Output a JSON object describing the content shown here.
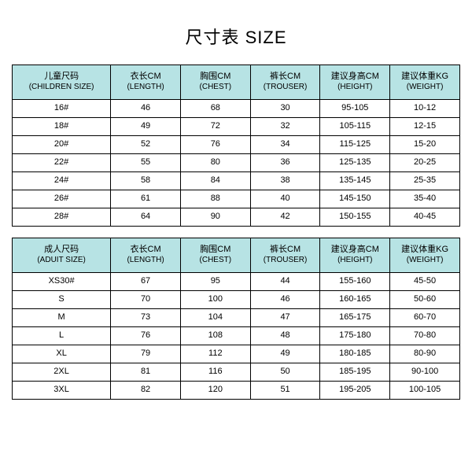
{
  "title": "尺寸表 SIZE",
  "title_fontsize": 22,
  "header_bg": "#b7e3e4",
  "border_color": "#000000",
  "bg_color": "#ffffff",
  "text_color": "#000000",
  "children": {
    "columns": [
      {
        "cn": "儿童尺码",
        "en": "(CHILDREN SIZE)"
      },
      {
        "cn": "衣长CM",
        "en": "(LENGTH)"
      },
      {
        "cn": "胸围CM",
        "en": "(CHEST)"
      },
      {
        "cn": "裤长CM",
        "en": "(TROUSER)"
      },
      {
        "cn": "建议身高CM",
        "en": "(HEIGHT)"
      },
      {
        "cn": "建议体重KG",
        "en": "(WEIGHT)"
      }
    ],
    "rows": [
      [
        "16#",
        "46",
        "68",
        "30",
        "95-105",
        "10-12"
      ],
      [
        "18#",
        "49",
        "72",
        "32",
        "105-115",
        "12-15"
      ],
      [
        "20#",
        "52",
        "76",
        "34",
        "115-125",
        "15-20"
      ],
      [
        "22#",
        "55",
        "80",
        "36",
        "125-135",
        "20-25"
      ],
      [
        "24#",
        "58",
        "84",
        "38",
        "135-145",
        "25-35"
      ],
      [
        "26#",
        "61",
        "88",
        "40",
        "145-150",
        "35-40"
      ],
      [
        "28#",
        "64",
        "90",
        "42",
        "150-155",
        "40-45"
      ]
    ]
  },
  "adult": {
    "columns": [
      {
        "cn": "成人尺码",
        "en": "(ADUIT SIZE)"
      },
      {
        "cn": "衣长CM",
        "en": "(LENGTH)"
      },
      {
        "cn": "胸围CM",
        "en": "(CHEST)"
      },
      {
        "cn": "裤长CM",
        "en": "(TROUSER)"
      },
      {
        "cn": "建议身高CM",
        "en": "(HEIGHT)"
      },
      {
        "cn": "建议体重KG",
        "en": "(WEIGHT)"
      }
    ],
    "rows": [
      [
        "XS30#",
        "67",
        "95",
        "44",
        "155-160",
        "45-50"
      ],
      [
        "S",
        "70",
        "100",
        "46",
        "160-165",
        "50-60"
      ],
      [
        "M",
        "73",
        "104",
        "47",
        "165-175",
        "60-70"
      ],
      [
        "L",
        "76",
        "108",
        "48",
        "175-180",
        "70-80"
      ],
      [
        "XL",
        "79",
        "112",
        "49",
        "180-185",
        "80-90"
      ],
      [
        "2XL",
        "81",
        "116",
        "50",
        "185-195",
        "90-100"
      ],
      [
        "3XL",
        "82",
        "120",
        "51",
        "195-205",
        "100-105"
      ]
    ]
  },
  "col_widths_pct": [
    22,
    15.6,
    15.6,
    15.6,
    15.6,
    15.6
  ]
}
